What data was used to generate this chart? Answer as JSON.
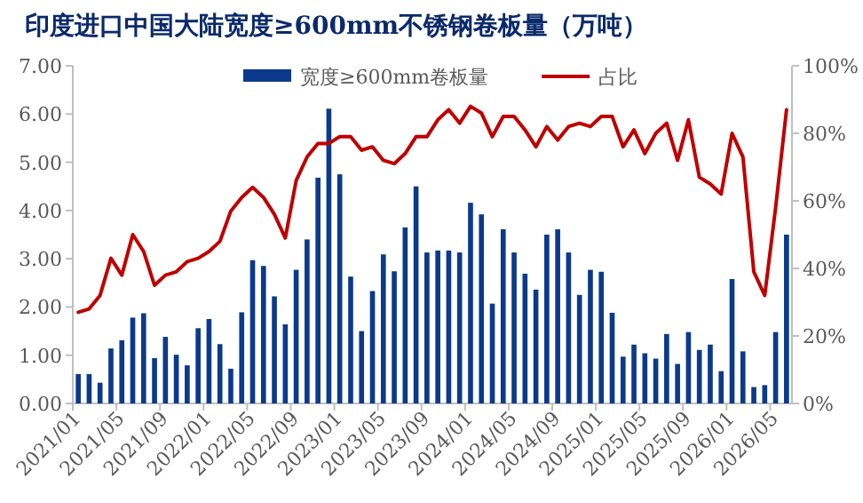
{
  "chart_data": {
    "type": "bar",
    "title": "印度进口中国大陆宽度≥600mm不锈钢卷板量（万吨）",
    "categories": [
      "2021/01",
      null,
      null,
      null,
      "2021/05",
      null,
      null,
      null,
      "2021/09",
      null,
      null,
      null,
      "2022/01",
      null,
      null,
      null,
      "2022/05",
      null,
      null,
      null,
      "2022/09",
      null,
      null,
      null,
      "2023/01",
      null,
      null,
      null,
      "2023/05",
      null,
      null,
      null,
      "2023/09",
      null,
      null,
      null,
      "2024/01",
      null,
      null,
      null,
      "2024/05",
      null,
      null,
      null,
      "2024/09",
      null,
      null,
      null,
      "2025/01",
      null,
      null,
      null,
      "2025/05",
      null,
      null,
      null,
      "2025/09",
      null,
      null,
      null,
      "2026/01",
      null,
      null,
      null,
      "2026/05",
      null
    ],
    "series": [
      {
        "name": "宽度≥600mm卷板量",
        "color": "#0b3a8c",
        "values": [
          0.61,
          0.61,
          0.43,
          1.14,
          1.31,
          1.78,
          1.87,
          0.94,
          1.38,
          1.01,
          0.79,
          1.56,
          1.75,
          1.23,
          0.72,
          1.89,
          2.97,
          2.85,
          2.22,
          1.64,
          2.77,
          3.4,
          4.68,
          6.11,
          4.75,
          2.63,
          1.5,
          2.33,
          3.09,
          2.74,
          3.65,
          4.5,
          3.13,
          3.17,
          3.17,
          3.13,
          4.16,
          3.92,
          2.07,
          3.61,
          3.13,
          2.69,
          2.36,
          3.5,
          3.61,
          3.13,
          2.25,
          2.77,
          2.73,
          1.88,
          0.97,
          1.22,
          1.04,
          0.93,
          1.44,
          0.82,
          1.48,
          1.11,
          1.22,
          0.67,
          2.58,
          1.08,
          0.34,
          0.38,
          1.48,
          3.5
        ]
      },
      {
        "name": "占比",
        "type": "line",
        "axis": "y2",
        "color": "#c00000",
        "values": [
          27,
          28,
          32,
          43,
          38,
          50,
          45,
          35,
          38,
          39,
          42,
          43,
          45,
          48,
          57,
          61,
          64,
          61,
          56,
          49,
          66,
          73,
          77,
          77,
          79,
          79,
          75,
          76,
          72,
          71,
          74,
          79,
          79,
          84,
          87,
          83,
          88,
          86,
          79,
          85,
          85,
          81,
          76,
          82,
          78,
          82,
          83,
          82,
          85,
          85,
          76,
          81,
          74,
          80,
          83,
          72,
          84,
          67,
          65,
          62,
          80,
          73,
          39,
          32,
          58,
          87
        ]
      }
    ],
    "ylim": [
      0,
      7
    ],
    "yticks": [
      {
        "value": 0,
        "label": "0.00"
      },
      {
        "value": 1,
        "label": "1.00"
      },
      {
        "value": 2,
        "label": "2.00"
      },
      {
        "value": 3,
        "label": "3.00"
      },
      {
        "value": 4,
        "label": "4.00"
      },
      {
        "value": 5,
        "label": "5.00"
      },
      {
        "value": 6,
        "label": "6.00"
      },
      {
        "value": 7,
        "label": "7.00"
      }
    ],
    "y2lim": [
      0,
      100
    ],
    "y2ticks": [
      {
        "value": 0,
        "label": "0%"
      },
      {
        "value": 20,
        "label": "20%"
      },
      {
        "value": 40,
        "label": "40%"
      },
      {
        "value": 60,
        "label": "60%"
      },
      {
        "value": 80,
        "label": "80%"
      },
      {
        "value": 100,
        "label": "100%"
      }
    ],
    "legend": "top",
    "grid": false,
    "marker": "none",
    "line_style": "solid"
  }
}
